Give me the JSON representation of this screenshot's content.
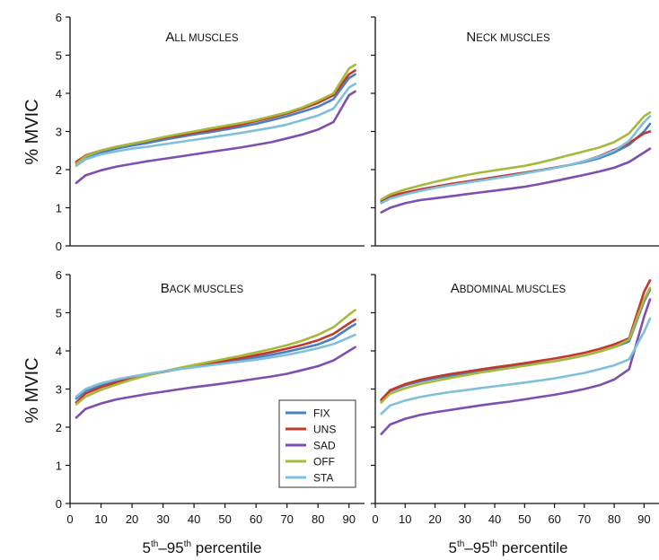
{
  "chart_data": {
    "type": "line",
    "shared": {
      "ylabel": "% MVIC",
      "xlabel_parts": [
        "5",
        "th",
        "–95",
        "th",
        " percentile"
      ],
      "xlim": [
        0,
        95
      ],
      "ylim": [
        0,
        6
      ],
      "xticks": [
        0,
        10,
        20,
        30,
        40,
        50,
        60,
        70,
        80,
        90
      ],
      "yticks": [
        0,
        1,
        2,
        3,
        4,
        5,
        6
      ],
      "x": [
        2,
        5,
        10,
        15,
        20,
        25,
        30,
        35,
        40,
        45,
        50,
        55,
        60,
        65,
        70,
        75,
        80,
        85,
        90,
        92
      ],
      "legend": {
        "position": "inside lower-right of Back muscles panel",
        "entries": [
          {
            "name": "FIX",
            "color": "#4a7fc1"
          },
          {
            "name": "UNS",
            "color": "#c0392b"
          },
          {
            "name": "SAD",
            "color": "#7d4fb0"
          },
          {
            "name": "OFF",
            "color": "#a8b83a"
          },
          {
            "name": "STA",
            "color": "#7fbfdc"
          }
        ]
      }
    },
    "panels": [
      {
        "title_cap1": "A",
        "title_rest1": "LL",
        "title_cap2": "",
        "title_rest2": " MUSCLES",
        "series": [
          {
            "name": "FIX",
            "values": [
              2.15,
              2.32,
              2.45,
              2.55,
              2.63,
              2.7,
              2.78,
              2.85,
              2.92,
              2.98,
              3.05,
              3.12,
              3.2,
              3.3,
              3.4,
              3.52,
              3.65,
              3.85,
              4.4,
              4.5
            ]
          },
          {
            "name": "UNS",
            "values": [
              2.2,
              2.37,
              2.5,
              2.6,
              2.68,
              2.75,
              2.83,
              2.9,
              2.97,
              3.03,
              3.1,
              3.18,
              3.27,
              3.37,
              3.47,
              3.6,
              3.75,
              3.95,
              4.5,
              4.6
            ]
          },
          {
            "name": "SAD",
            "values": [
              1.65,
              1.85,
              1.98,
              2.08,
              2.15,
              2.22,
              2.28,
              2.34,
              2.4,
              2.46,
              2.52,
              2.58,
              2.65,
              2.72,
              2.82,
              2.92,
              3.05,
              3.25,
              3.95,
              4.05
            ]
          },
          {
            "name": "OFF",
            "values": [
              2.15,
              2.35,
              2.5,
              2.6,
              2.68,
              2.76,
              2.85,
              2.93,
              3.0,
              3.08,
              3.15,
              3.22,
              3.3,
              3.4,
              3.5,
              3.63,
              3.8,
              4.0,
              4.65,
              4.75
            ]
          },
          {
            "name": "STA",
            "values": [
              2.1,
              2.27,
              2.4,
              2.48,
              2.55,
              2.6,
              2.66,
              2.72,
              2.78,
              2.84,
              2.9,
              2.96,
              3.03,
              3.1,
              3.18,
              3.3,
              3.42,
              3.6,
              4.15,
              4.25
            ]
          }
        ]
      },
      {
        "title_cap1": "N",
        "title_rest1": "ECK",
        "title_cap2": "",
        "title_rest2": " MUSCLES",
        "series": [
          {
            "name": "FIX",
            "values": [
              1.15,
              1.27,
              1.38,
              1.48,
              1.55,
              1.62,
              1.68,
              1.74,
              1.8,
              1.86,
              1.92,
              1.98,
              2.05,
              2.12,
              2.2,
              2.3,
              2.45,
              2.65,
              3.0,
              3.2
            ]
          },
          {
            "name": "UNS",
            "values": [
              1.2,
              1.3,
              1.4,
              1.48,
              1.55,
              1.62,
              1.68,
              1.74,
              1.8,
              1.86,
              1.92,
              1.98,
              2.05,
              2.12,
              2.22,
              2.35,
              2.52,
              2.7,
              2.95,
              3.0
            ]
          },
          {
            "name": "SAD",
            "values": [
              0.88,
              1.0,
              1.12,
              1.2,
              1.25,
              1.3,
              1.35,
              1.4,
              1.45,
              1.5,
              1.55,
              1.62,
              1.7,
              1.78,
              1.86,
              1.95,
              2.05,
              2.2,
              2.45,
              2.55
            ]
          },
          {
            "name": "OFF",
            "values": [
              1.22,
              1.35,
              1.48,
              1.58,
              1.68,
              1.77,
              1.85,
              1.92,
              1.98,
              2.04,
              2.1,
              2.18,
              2.28,
              2.38,
              2.48,
              2.58,
              2.72,
              2.95,
              3.4,
              3.5
            ]
          },
          {
            "name": "STA",
            "values": [
              1.12,
              1.24,
              1.35,
              1.44,
              1.52,
              1.59,
              1.65,
              1.71,
              1.77,
              1.83,
              1.9,
              1.97,
              2.04,
              2.12,
              2.22,
              2.34,
              2.5,
              2.75,
              3.25,
              3.4
            ]
          }
        ]
      },
      {
        "title_cap1": "B",
        "title_rest1": "ACK",
        "title_cap2": "",
        "title_rest2": " MUSCLES",
        "series": [
          {
            "name": "FIX",
            "values": [
              2.75,
              2.95,
              3.1,
              3.22,
              3.3,
              3.38,
              3.45,
              3.52,
              3.58,
              3.64,
              3.7,
              3.76,
              3.83,
              3.9,
              3.98,
              4.07,
              4.17,
              4.33,
              4.6,
              4.7
            ]
          },
          {
            "name": "UNS",
            "values": [
              2.65,
              2.88,
              3.05,
              3.18,
              3.28,
              3.37,
              3.45,
              3.53,
              3.6,
              3.67,
              3.74,
              3.81,
              3.89,
              3.97,
              4.06,
              4.16,
              4.28,
              4.45,
              4.72,
              4.82
            ]
          },
          {
            "name": "SAD",
            "values": [
              2.25,
              2.48,
              2.62,
              2.73,
              2.8,
              2.87,
              2.93,
              2.99,
              3.05,
              3.1,
              3.15,
              3.21,
              3.27,
              3.33,
              3.4,
              3.5,
              3.6,
              3.75,
              4.0,
              4.1
            ]
          },
          {
            "name": "OFF",
            "values": [
              2.6,
              2.8,
              2.98,
              3.12,
              3.25,
              3.36,
              3.46,
              3.55,
              3.63,
              3.71,
              3.79,
              3.87,
              3.96,
              4.05,
              4.15,
              4.27,
              4.42,
              4.62,
              4.95,
              5.07
            ]
          },
          {
            "name": "STA",
            "values": [
              2.8,
              3.0,
              3.15,
              3.25,
              3.33,
              3.4,
              3.46,
              3.52,
              3.57,
              3.62,
              3.67,
              3.72,
              3.77,
              3.83,
              3.9,
              3.98,
              4.07,
              4.18,
              4.35,
              4.42
            ]
          }
        ]
      },
      {
        "title_cap1": "A",
        "title_rest1": "BDOMINAL",
        "title_cap2": "",
        "title_rest2": " MUSCLES",
        "series": [
          {
            "name": "FIX",
            "values": [
              2.7,
              2.95,
              3.1,
              3.2,
              3.28,
              3.35,
              3.41,
              3.47,
              3.53,
              3.58,
              3.63,
              3.68,
              3.73,
              3.8,
              3.88,
              3.98,
              4.1,
              4.25,
              5.3,
              5.6
            ]
          },
          {
            "name": "UNS",
            "values": [
              2.72,
              2.97,
              3.13,
              3.24,
              3.32,
              3.39,
              3.45,
              3.51,
              3.57,
              3.62,
              3.68,
              3.74,
              3.8,
              3.87,
              3.95,
              4.05,
              4.17,
              4.33,
              5.55,
              5.85
            ]
          },
          {
            "name": "SAD",
            "values": [
              1.82,
              2.07,
              2.22,
              2.32,
              2.39,
              2.45,
              2.51,
              2.57,
              2.62,
              2.67,
              2.73,
              2.79,
              2.85,
              2.92,
              3.0,
              3.1,
              3.25,
              3.52,
              4.9,
              5.35
            ]
          },
          {
            "name": "OFF",
            "values": [
              2.65,
              2.88,
              3.02,
              3.13,
              3.21,
              3.29,
              3.36,
              3.43,
              3.49,
              3.55,
              3.61,
              3.67,
              3.73,
              3.8,
              3.88,
              3.98,
              4.1,
              4.3,
              5.35,
              5.65
            ]
          },
          {
            "name": "STA",
            "values": [
              2.35,
              2.57,
              2.7,
              2.79,
              2.86,
              2.92,
              2.97,
              3.02,
              3.07,
              3.12,
              3.17,
              3.22,
              3.28,
              3.35,
              3.42,
              3.52,
              3.62,
              3.78,
              4.5,
              4.85
            ]
          }
        ]
      }
    ]
  }
}
